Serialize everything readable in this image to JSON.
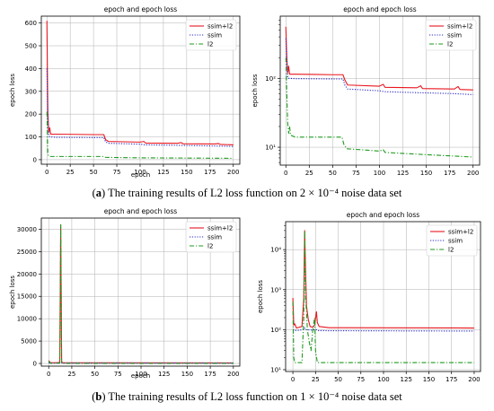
{
  "captions": {
    "a": {
      "letter": "a",
      "text": "The training results of L2 loss function on 2 × 10⁻⁴ noise data set"
    },
    "b": {
      "letter": "b",
      "text": "The training results of L2 loss function on 1 × 10⁻⁴ noise data set"
    }
  },
  "chart_data": [
    {
      "id": "a-left",
      "type": "line",
      "title": "epoch and epoch loss",
      "xlabel": "epoch",
      "ylabel": "epoch loss",
      "xlim": [
        -6,
        207
      ],
      "ylim": [
        -20,
        630
      ],
      "yscale": "linear",
      "xticks": [
        0,
        25,
        50,
        75,
        100,
        125,
        150,
        175,
        200
      ],
      "yticks": [
        0,
        100,
        200,
        300,
        400,
        500,
        600
      ],
      "grid": true,
      "legend": "top-right",
      "series": [
        {
          "name": "ssim+l2",
          "color": "#e8161e",
          "dash": "solid",
          "points": [
            [
              0,
              610
            ],
            [
              1,
              205
            ],
            [
              2,
              120
            ],
            [
              3,
              140
            ],
            [
              4,
              112
            ],
            [
              10,
              112
            ],
            [
              30,
              111
            ],
            [
              50,
              110
            ],
            [
              61,
              110
            ],
            [
              63,
              88
            ],
            [
              66,
              80
            ],
            [
              100,
              77
            ],
            [
              104,
              80
            ],
            [
              106,
              73
            ],
            [
              140,
              72
            ],
            [
              144,
              75
            ],
            [
              146,
              70
            ],
            [
              180,
              69
            ],
            [
              184,
              71
            ],
            [
              186,
              67
            ],
            [
              200,
              65
            ]
          ]
        },
        {
          "name": "ssim",
          "color": "#2a2ac8",
          "dash": "dot",
          "points": [
            [
              0,
              400
            ],
            [
              1,
              190
            ],
            [
              2,
              105
            ],
            [
              3,
              100
            ],
            [
              10,
              98
            ],
            [
              50,
              97
            ],
            [
              61,
              97
            ],
            [
              63,
              78
            ],
            [
              66,
              72
            ],
            [
              100,
              68
            ],
            [
              106,
              65
            ],
            [
              140,
              63
            ],
            [
              180,
              60
            ],
            [
              200,
              58
            ]
          ]
        },
        {
          "name": "l2",
          "color": "#1e9a1e",
          "dash": "dashdot",
          "points": [
            [
              0,
              210
            ],
            [
              1,
              25
            ],
            [
              2,
              16
            ],
            [
              4,
              14
            ],
            [
              60,
              14
            ],
            [
              63,
              10
            ],
            [
              100,
              8
            ],
            [
              150,
              7
            ],
            [
              200,
              6
            ]
          ]
        }
      ]
    },
    {
      "id": "a-right",
      "type": "line",
      "title": "epoch and epoch loss",
      "xlabel": "",
      "ylabel": "epoch loss",
      "xlim": [
        -6,
        207
      ],
      "ylim": [
        5.5,
        800
      ],
      "yscale": "log",
      "xticks": [
        0,
        25,
        50,
        75,
        100,
        125,
        150,
        175,
        200
      ],
      "yticks": [
        10,
        100
      ],
      "ytick_labels": [
        "10¹",
        "10²"
      ],
      "grid": true,
      "legend": "top-right",
      "series": [
        {
          "name": "ssim+l2",
          "color": "#e8161e",
          "dash": "solid",
          "points": [
            [
              0,
              560
            ],
            [
              1,
              200
            ],
            [
              2,
              120
            ],
            [
              3,
              150
            ],
            [
              4,
              115
            ],
            [
              10,
              115
            ],
            [
              30,
              114
            ],
            [
              50,
              113
            ],
            [
              61,
              113
            ],
            [
              63,
              95
            ],
            [
              66,
              80
            ],
            [
              100,
              77
            ],
            [
              104,
              82
            ],
            [
              106,
              74
            ],
            [
              140,
              73
            ],
            [
              144,
              78
            ],
            [
              146,
              71
            ],
            [
              180,
              70
            ],
            [
              184,
              76
            ],
            [
              186,
              69
            ],
            [
              200,
              68
            ]
          ]
        },
        {
          "name": "ssim",
          "color": "#2a2ac8",
          "dash": "dot",
          "points": [
            [
              0,
              380
            ],
            [
              1,
              180
            ],
            [
              2,
              102
            ],
            [
              3,
              100
            ],
            [
              10,
              99
            ],
            [
              50,
              98
            ],
            [
              61,
              98
            ],
            [
              63,
              80
            ],
            [
              66,
              70
            ],
            [
              100,
              66
            ],
            [
              106,
              64
            ],
            [
              140,
              62
            ],
            [
              180,
              60
            ],
            [
              200,
              58
            ]
          ]
        },
        {
          "name": "l2",
          "color": "#1e9a1e",
          "dash": "dashdot",
          "points": [
            [
              0,
              200
            ],
            [
              1,
              60
            ],
            [
              2,
              22
            ],
            [
              3,
              16
            ],
            [
              4,
              20
            ],
            [
              5,
              15
            ],
            [
              10,
              14
            ],
            [
              60,
              14
            ],
            [
              62,
              11
            ],
            [
              65,
              9.5
            ],
            [
              100,
              8.8
            ],
            [
              104,
              9.2
            ],
            [
              106,
              8.4
            ],
            [
              150,
              7.8
            ],
            [
              200,
              7.2
            ]
          ]
        }
      ]
    },
    {
      "id": "b-left",
      "type": "line",
      "title": "epoch and epoch loss",
      "xlabel": "epoch",
      "ylabel": "epoch loss",
      "xlim": [
        -8,
        207
      ],
      "ylim": [
        -600,
        32500
      ],
      "yscale": "linear",
      "xticks": [
        0,
        25,
        50,
        75,
        100,
        125,
        150,
        175,
        200
      ],
      "yticks": [
        0,
        5000,
        10000,
        15000,
        20000,
        25000,
        30000
      ],
      "grid": true,
      "legend": "top-right",
      "series": [
        {
          "name": "ssim+l2",
          "color": "#e8161e",
          "dash": "solid",
          "points": [
            [
              0,
              620
            ],
            [
              2,
              150
            ],
            [
              10,
              160
            ],
            [
              12,
              300
            ],
            [
              13,
              31000
            ],
            [
              14,
              300
            ],
            [
              16,
              150
            ],
            [
              200,
              110
            ]
          ]
        },
        {
          "name": "ssim",
          "color": "#2a2ac8",
          "dash": "dot",
          "points": [
            [
              0,
              110
            ],
            [
              10,
              100
            ],
            [
              13,
              105
            ],
            [
              15,
              98
            ],
            [
              200,
              95
            ]
          ]
        },
        {
          "name": "l2",
          "color": "#1e9a1e",
          "dash": "dashdot",
          "points": [
            [
              0,
              500
            ],
            [
              2,
              20
            ],
            [
              12,
              60
            ],
            [
              13,
              31000
            ],
            [
              14,
              200
            ],
            [
              16,
              20
            ],
            [
              200,
              15
            ]
          ]
        }
      ]
    },
    {
      "id": "b-right",
      "type": "line",
      "title": "epoch and epoch loss",
      "xlabel": "",
      "ylabel": "epoch loss",
      "xlim": [
        -8,
        207
      ],
      "ylim": [
        9,
        50000
      ],
      "yscale": "log",
      "xticks": [
        0,
        25,
        50,
        75,
        100,
        125,
        150,
        175,
        200
      ],
      "yticks": [
        10,
        100,
        1000,
        10000
      ],
      "ytick_labels": [
        "10¹",
        "10²",
        "10³",
        "10⁴"
      ],
      "grid": true,
      "legend": "top-right",
      "series": [
        {
          "name": "ssim+l2",
          "color": "#e8161e",
          "dash": "solid",
          "points": [
            [
              0,
              620
            ],
            [
              1,
              130
            ],
            [
              2,
              140
            ],
            [
              4,
              110
            ],
            [
              10,
              120
            ],
            [
              12,
              600
            ],
            [
              13,
              30000
            ],
            [
              14,
              3000
            ],
            [
              15,
              400
            ],
            [
              17,
              180
            ],
            [
              19,
              120
            ],
            [
              22,
              115
            ],
            [
              24,
              130
            ],
            [
              26,
              280
            ],
            [
              27,
              150
            ],
            [
              29,
              120
            ],
            [
              40,
              112
            ],
            [
              200,
              110
            ]
          ]
        },
        {
          "name": "ssim",
          "color": "#2a2ac8",
          "dash": "dot",
          "points": [
            [
              0,
              100
            ],
            [
              1,
              100
            ],
            [
              4,
              95
            ],
            [
              12,
              100
            ],
            [
              13,
              110
            ],
            [
              14,
              100
            ],
            [
              20,
              98
            ],
            [
              26,
              100
            ],
            [
              27,
              95
            ],
            [
              40,
              94
            ],
            [
              200,
              92
            ]
          ]
        },
        {
          "name": "l2",
          "color": "#1e9a1e",
          "dash": "dashdot",
          "points": [
            [
              0,
              500
            ],
            [
              1,
              20
            ],
            [
              2,
              15
            ],
            [
              10,
              15
            ],
            [
              12,
              200
            ],
            [
              13,
              30000
            ],
            [
              14,
              600
            ],
            [
              15,
              300
            ],
            [
              16,
              100
            ],
            [
              18,
              50
            ],
            [
              20,
              30
            ],
            [
              22,
              100
            ],
            [
              24,
              200
            ],
            [
              25,
              30
            ],
            [
              27,
              15
            ],
            [
              200,
              15
            ]
          ]
        }
      ]
    }
  ]
}
